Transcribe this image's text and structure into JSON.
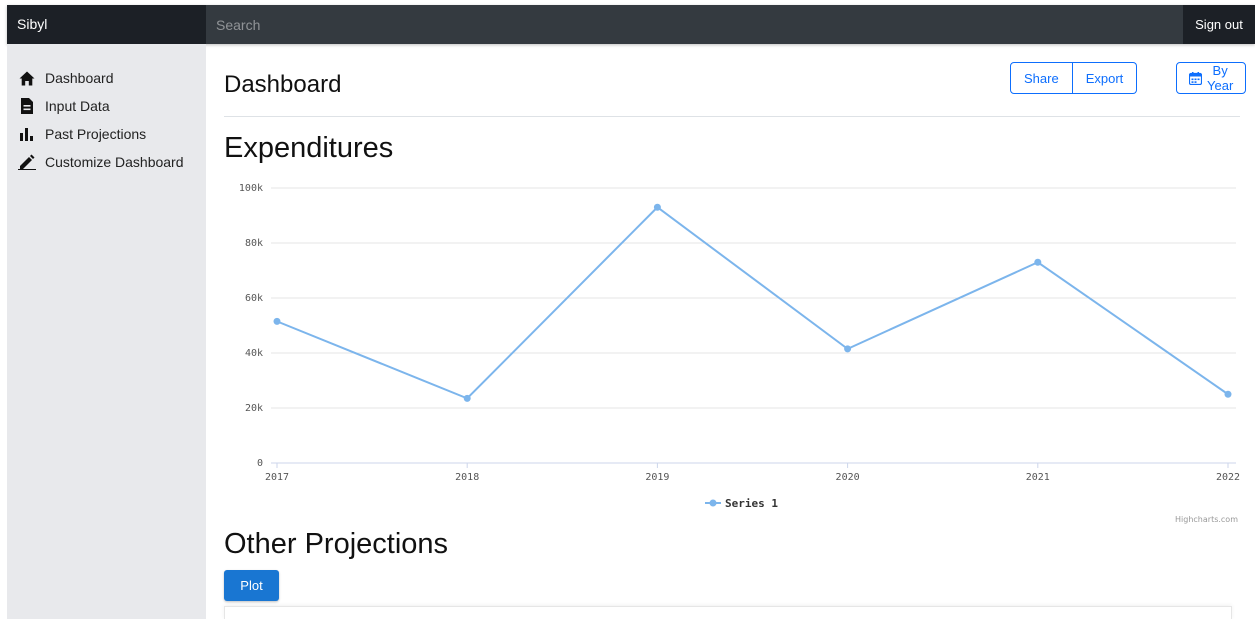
{
  "app": {
    "brand": "Sibyl"
  },
  "topbar": {
    "search_placeholder": "Search",
    "signout_label": "Sign out"
  },
  "sidebar": {
    "items": [
      {
        "label": "Dashboard",
        "icon": "home-icon"
      },
      {
        "label": "Input Data",
        "icon": "file-icon"
      },
      {
        "label": "Past Projections",
        "icon": "bar-chart-icon"
      },
      {
        "label": "Customize Dashboard",
        "icon": "pencil-icon"
      }
    ]
  },
  "header": {
    "title": "Dashboard",
    "share_label": "Share",
    "export_label": "Export",
    "period_label": "By Year"
  },
  "sections": {
    "expenditures_title": "Expenditures",
    "other_title": "Other Projections",
    "plot_label": "Plot"
  },
  "colors": {
    "series": "#7cb5ec",
    "accent": "#0d6efd",
    "plot_button": "#1976d2",
    "topbar": "#343a40"
  },
  "chart_data": {
    "type": "line",
    "x": [
      "2017",
      "2018",
      "2019",
      "2020",
      "2021",
      "2022"
    ],
    "series": [
      {
        "name": "Series 1",
        "values": [
          51500,
          23500,
          93000,
          41500,
          73000,
          25000
        ]
      }
    ],
    "yticks": [
      "0",
      "20k",
      "40k",
      "60k",
      "80k",
      "100k"
    ],
    "ylim": [
      0,
      100000
    ],
    "grid": true,
    "legend": "bottom-center",
    "credits": "Highcharts.com"
  }
}
